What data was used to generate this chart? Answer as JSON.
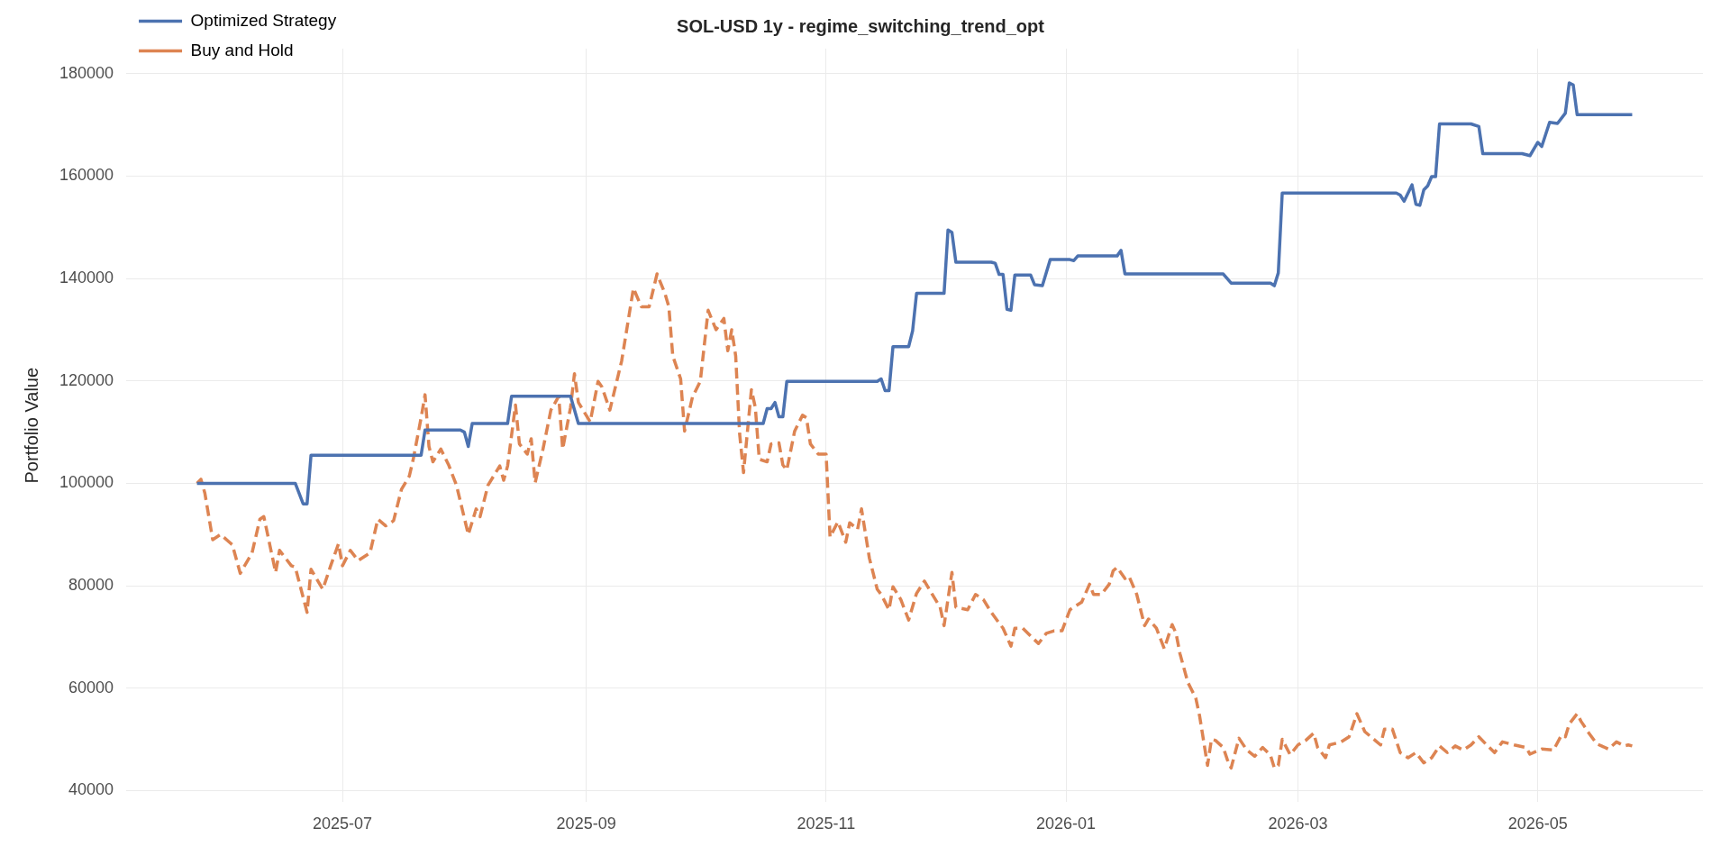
{
  "chart_data": {
    "type": "line",
    "title": "SOL-USD 1y - regime_switching_trend_opt",
    "ylabel": "Portfolio Value",
    "xlim": [
      "2025-05-07",
      "2026-06-12"
    ],
    "xticks": [
      {
        "value": "2025-07-01",
        "label": "2025-07"
      },
      {
        "value": "2025-09-01",
        "label": "2025-09"
      },
      {
        "value": "2025-11-01",
        "label": "2025-11"
      },
      {
        "value": "2026-01-01",
        "label": "2026-01"
      },
      {
        "value": "2026-03-01",
        "label": "2026-03"
      },
      {
        "value": "2026-05-01",
        "label": "2026-05"
      }
    ],
    "ylim": [
      37700,
      184900
    ],
    "yticks": [
      40000,
      60000,
      80000,
      100000,
      120000,
      140000,
      160000,
      180000
    ],
    "grid": true,
    "legend": "top left",
    "marker": "none",
    "series": [
      {
        "name": "Optimized Strategy",
        "color": "#4c72b0",
        "line_style": "solid",
        "x": [
          "2025-05-25",
          "2025-06-19",
          "2025-06-21",
          "2025-06-22",
          "2025-06-23",
          "2025-07-21",
          "2025-07-22",
          "2025-07-31",
          "2025-08-01",
          "2025-08-02",
          "2025-08-03",
          "2025-08-12",
          "2025-08-13",
          "2025-08-28",
          "2025-08-30",
          "2025-10-16",
          "2025-10-17",
          "2025-10-18",
          "2025-10-19",
          "2025-10-20",
          "2025-10-21",
          "2025-10-22",
          "2025-11-14",
          "2025-11-15",
          "2025-11-16",
          "2025-11-17",
          "2025-11-18",
          "2025-11-22",
          "2025-11-23",
          "2025-11-24",
          "2025-12-01",
          "2025-12-02",
          "2025-12-03",
          "2025-12-04",
          "2025-12-13",
          "2025-12-14",
          "2025-12-15",
          "2025-12-16",
          "2025-12-17",
          "2025-12-18",
          "2025-12-19",
          "2025-12-23",
          "2025-12-24",
          "2025-12-26",
          "2025-12-28",
          "2026-01-02",
          "2026-01-03",
          "2026-01-04",
          "2026-01-14",
          "2026-01-15",
          "2026-01-16",
          "2026-02-10",
          "2026-02-12",
          "2026-02-22",
          "2026-02-23",
          "2026-02-24",
          "2026-02-25",
          "2026-03-26",
          "2026-03-27",
          "2026-03-28",
          "2026-03-30",
          "2026-03-31",
          "2026-04-01",
          "2026-04-02",
          "2026-04-03",
          "2026-04-04",
          "2026-04-05",
          "2026-04-06",
          "2026-04-14",
          "2026-04-16",
          "2026-04-17",
          "2026-04-27",
          "2026-04-29",
          "2026-05-01",
          "2026-05-02",
          "2026-05-04",
          "2026-05-06",
          "2026-05-08",
          "2026-05-09",
          "2026-05-10",
          "2026-05-11",
          "2026-05-25"
        ],
        "values": [
          100000,
          100000,
          96000,
          96000,
          105500,
          105500,
          110400,
          110400,
          110000,
          107200,
          111700,
          111700,
          117000,
          117000,
          111700,
          111700,
          114600,
          114600,
          115800,
          113000,
          113000,
          119900,
          119900,
          120400,
          118100,
          118100,
          126700,
          126700,
          129800,
          137100,
          137100,
          149500,
          149000,
          143200,
          143200,
          143000,
          140800,
          140800,
          134000,
          133800,
          140700,
          140700,
          138800,
          138600,
          143700,
          143700,
          143500,
          144400,
          144400,
          145500,
          140900,
          140900,
          139100,
          139100,
          138600,
          141100,
          156700,
          156700,
          156300,
          155100,
          158300,
          154500,
          154300,
          157300,
          158100,
          159900,
          159900,
          170200,
          170200,
          169700,
          164400,
          164400,
          164000,
          166600,
          165800,
          170500,
          170300,
          172300,
          178200,
          177800,
          172000,
          172000
        ]
      },
      {
        "name": "Buy and Hold",
        "color": "#dd8452",
        "line_style": "dashed",
        "x": [
          "2025-05-25",
          "2025-05-26",
          "2025-05-27",
          "2025-05-29",
          "2025-05-31",
          "2025-06-03",
          "2025-06-05",
          "2025-06-08",
          "2025-06-10",
          "2025-06-11",
          "2025-06-14",
          "2025-06-15",
          "2025-06-18",
          "2025-06-19",
          "2025-06-22",
          "2025-06-23",
          "2025-06-26",
          "2025-06-28",
          "2025-06-30",
          "2025-07-01",
          "2025-07-03",
          "2025-07-05",
          "2025-07-08",
          "2025-07-10",
          "2025-07-12",
          "2025-07-14",
          "2025-07-16",
          "2025-07-18",
          "2025-07-19",
          "2025-07-21",
          "2025-07-22",
          "2025-07-23",
          "2025-07-24",
          "2025-07-26",
          "2025-07-28",
          "2025-07-30",
          "2025-08-02",
          "2025-08-04",
          "2025-08-05",
          "2025-08-07",
          "2025-08-10",
          "2025-08-11",
          "2025-08-12",
          "2025-08-14",
          "2025-08-15",
          "2025-08-17",
          "2025-08-18",
          "2025-08-19",
          "2025-08-21",
          "2025-08-23",
          "2025-08-25",
          "2025-08-26",
          "2025-08-28",
          "2025-08-29",
          "2025-08-30",
          "2025-09-02",
          "2025-09-04",
          "2025-09-05",
          "2025-09-07",
          "2025-09-10",
          "2025-09-13",
          "2025-09-15",
          "2025-09-17",
          "2025-09-19",
          "2025-09-21",
          "2025-09-22",
          "2025-09-23",
          "2025-09-25",
          "2025-09-26",
          "2025-09-28",
          "2025-09-30",
          "2025-10-02",
          "2025-10-04",
          "2025-10-06",
          "2025-10-07",
          "2025-10-08",
          "2025-10-09",
          "2025-10-10",
          "2025-10-11",
          "2025-10-13",
          "2025-10-14",
          "2025-10-15",
          "2025-10-17",
          "2025-10-18",
          "2025-10-20",
          "2025-10-21",
          "2025-10-22",
          "2025-10-24",
          "2025-10-26",
          "2025-10-27",
          "2025-10-28",
          "2025-10-30",
          "2025-11-01",
          "2025-11-02",
          "2025-11-04",
          "2025-11-06",
          "2025-11-07",
          "2025-11-09",
          "2025-11-10",
          "2025-11-12",
          "2025-11-14",
          "2025-11-15",
          "2025-11-17",
          "2025-11-18",
          "2025-11-20",
          "2025-11-22",
          "2025-11-24",
          "2025-11-26",
          "2025-11-28",
          "2025-11-30",
          "2025-12-01",
          "2025-12-03",
          "2025-12-04",
          "2025-12-07",
          "2025-12-09",
          "2025-12-11",
          "2025-12-13",
          "2025-12-15",
          "2025-12-16",
          "2025-12-18",
          "2025-12-19",
          "2025-12-21",
          "2025-12-23",
          "2025-12-25",
          "2025-12-27",
          "2025-12-29",
          "2025-12-31",
          "2026-01-02",
          "2026-01-05",
          "2026-01-07",
          "2026-01-08",
          "2026-01-10",
          "2026-01-12",
          "2026-01-13",
          "2026-01-14",
          "2026-01-16",
          "2026-01-17",
          "2026-01-19",
          "2026-01-21",
          "2026-01-22",
          "2026-01-24",
          "2026-01-26",
          "2026-01-28",
          "2026-01-29",
          "2026-01-30",
          "2026-02-01",
          "2026-02-03",
          "2026-02-04",
          "2026-02-06",
          "2026-02-07",
          "2026-02-08",
          "2026-02-10",
          "2026-02-11",
          "2026-02-12",
          "2026-02-14",
          "2026-02-16",
          "2026-02-18",
          "2026-02-20",
          "2026-02-22",
          "2026-02-23",
          "2026-02-24",
          "2026-02-25",
          "2026-02-27",
          "2026-03-01",
          "2026-03-03",
          "2026-03-05",
          "2026-03-06",
          "2026-03-08",
          "2026-03-09",
          "2026-03-12",
          "2026-03-14",
          "2026-03-16",
          "2026-03-18",
          "2026-03-20",
          "2026-03-22",
          "2026-03-23",
          "2026-03-25",
          "2026-03-27",
          "2026-03-29",
          "2026-03-31",
          "2026-04-02",
          "2026-04-04",
          "2026-04-06",
          "2026-04-08",
          "2026-04-10",
          "2026-04-12",
          "2026-04-14",
          "2026-04-16",
          "2026-04-18",
          "2026-04-20",
          "2026-04-22",
          "2026-04-25",
          "2026-04-28",
          "2026-04-29",
          "2026-05-02",
          "2026-05-05",
          "2026-05-07",
          "2026-05-08",
          "2026-05-09",
          "2026-05-11",
          "2026-05-12",
          "2026-05-14",
          "2026-05-16",
          "2026-05-19",
          "2026-05-21",
          "2026-05-23",
          "2026-05-24",
          "2026-05-25"
        ],
        "values": [
          100000,
          100800,
          98100,
          89000,
          90000,
          88000,
          82400,
          86400,
          93000,
          93500,
          82600,
          86900,
          83900,
          83600,
          74800,
          83200,
          79300,
          83900,
          88200,
          83900,
          86900,
          84900,
          86400,
          93000,
          91700,
          92700,
          98800,
          101400,
          104700,
          112800,
          117300,
          107200,
          104200,
          106700,
          103600,
          99600,
          90000,
          95000,
          93500,
          99600,
          103400,
          100600,
          103400,
          115300,
          107700,
          105700,
          108700,
          100100,
          106700,
          114300,
          117000,
          106700,
          114800,
          121400,
          115800,
          112000,
          119900,
          118800,
          114300,
          123900,
          138100,
          134500,
          134500,
          140900,
          137100,
          134500,
          124900,
          120400,
          110200,
          116800,
          119900,
          133800,
          130000,
          132200,
          125900,
          130000,
          124900,
          109700,
          102100,
          118300,
          114800,
          104700,
          104200,
          107700,
          107900,
          103600,
          102600,
          110200,
          113300,
          112800,
          107700,
          105700,
          105700,
          89500,
          92500,
          88500,
          92300,
          91000,
          95000,
          85400,
          79300,
          78300,
          75300,
          79800,
          77300,
          73300,
          78500,
          80900,
          78300,
          75800,
          72200,
          82600,
          75800,
          75300,
          78300,
          77300,
          74800,
          72700,
          71700,
          68200,
          71700,
          71700,
          70200,
          68700,
          70700,
          71200,
          71200,
          75300,
          76800,
          80300,
          78300,
          78300,
          80300,
          82900,
          83600,
          81400,
          81900,
          78300,
          72200,
          73500,
          71700,
          67700,
          72400,
          70700,
          66700,
          61100,
          58100,
          54500,
          44900,
          50000,
          49800,
          48400,
          46100,
          44400,
          50200,
          47900,
          46700,
          48400,
          46900,
          44400,
          44900,
          50000,
          47000,
          48900,
          49800,
          51200,
          48400,
          46400,
          48900,
          49500,
          50500,
          55000,
          51500,
          50200,
          48900,
          52000,
          52000,
          47400,
          46400,
          47400,
          45400,
          46400,
          48700,
          47400,
          48700,
          47900,
          48900,
          50500,
          48900,
          47400,
          49500,
          48900,
          48400,
          47100,
          48100,
          47900,
          50800,
          50500,
          53000,
          55000,
          53500,
          51200,
          49100,
          48100,
          49500,
          48700,
          48900,
          48700
        ]
      }
    ]
  }
}
